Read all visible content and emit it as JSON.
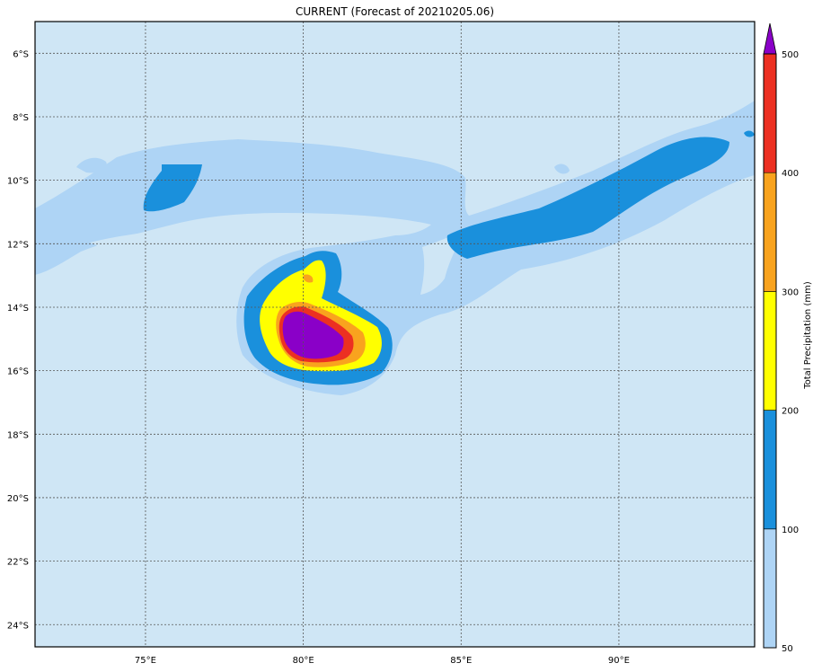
{
  "title": "CURRENT (Forecast of 20210205.06)",
  "map": {
    "lon_range": [
      71.5,
      94.3
    ],
    "lat_range": [
      -24.7,
      -5.0
    ],
    "lon_ticks": [
      {
        "value": 75,
        "label": "75°E"
      },
      {
        "value": 80,
        "label": "80°E"
      },
      {
        "value": 85,
        "label": "85°E"
      },
      {
        "value": 90,
        "label": "90°E"
      }
    ],
    "lat_ticks": [
      {
        "value": -6,
        "label": "6°S"
      },
      {
        "value": -8,
        "label": "8°S"
      },
      {
        "value": -10,
        "label": "10°S"
      },
      {
        "value": -12,
        "label": "12°S"
      },
      {
        "value": -14,
        "label": "14°S"
      },
      {
        "value": -16,
        "label": "16°S"
      },
      {
        "value": -18,
        "label": "18°S"
      },
      {
        "value": -20,
        "label": "20°S"
      },
      {
        "value": -22,
        "label": "22°S"
      },
      {
        "value": -24,
        "label": "24°S"
      }
    ],
    "background_color": "#cfe6f5",
    "grid_color": "#555555"
  },
  "colorbar": {
    "label": "Total Precipitation (mm)",
    "levels": [
      {
        "value": "50",
        "color": "#aed4f5"
      },
      {
        "value": "100",
        "color": "#1a90dc"
      },
      {
        "value": "200",
        "color": "#ffff00"
      },
      {
        "value": "300",
        "color": "#f9a31e"
      },
      {
        "value": "400",
        "color": "#ec3022"
      },
      {
        "value": "500",
        "color": "#8a00c8"
      }
    ],
    "tick_labels": [
      "50",
      "100",
      "200",
      "300",
      "400",
      "500"
    ]
  }
}
